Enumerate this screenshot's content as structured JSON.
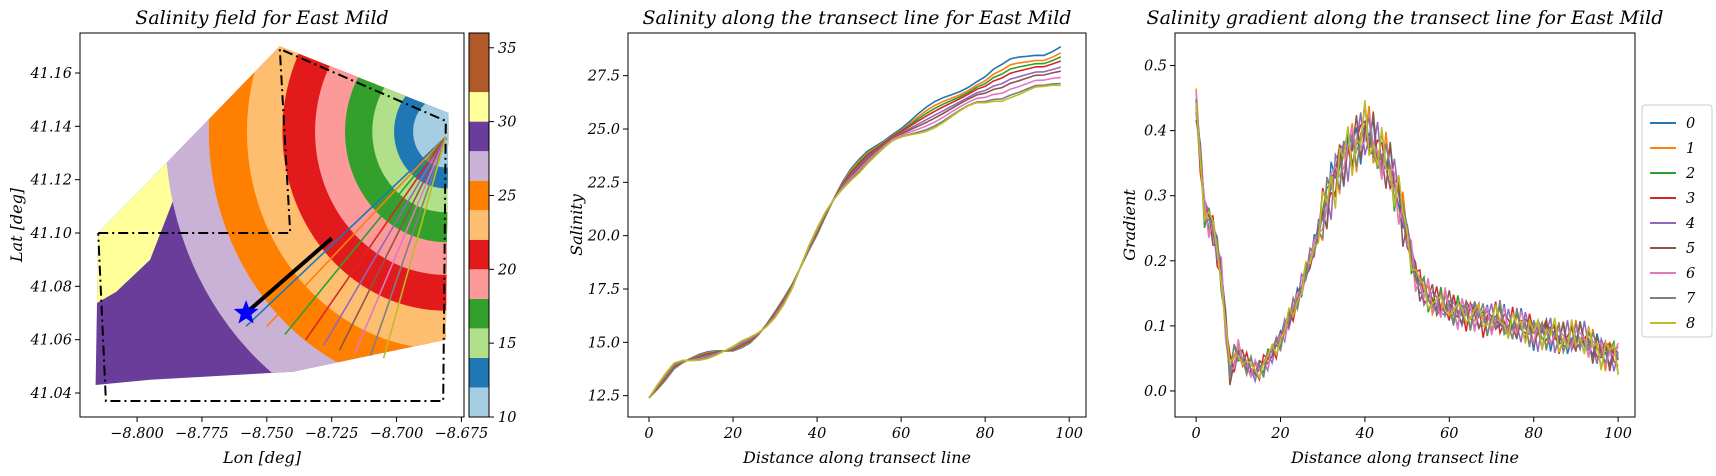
{
  "chart_data": [
    {
      "type": "heatmap",
      "title": "Salinity field for East Mild",
      "xlabel": "Lon [deg]",
      "ylabel": "Lat [deg]",
      "xlim": [
        -8.822,
        -8.674
      ],
      "ylim": [
        41.031,
        41.175
      ],
      "x_ticks": [
        -8.8,
        -8.775,
        -8.75,
        -8.725,
        -8.7,
        -8.675
      ],
      "x_tick_labels": [
        "−8.800",
        "−8.775",
        "−8.750",
        "−8.725",
        "−8.700",
        "−8.675"
      ],
      "y_ticks": [
        41.04,
        41.06,
        41.08,
        41.1,
        41.12,
        41.14,
        41.16
      ],
      "y_tick_labels": [
        "41.04",
        "41.06",
        "41.08",
        "41.10",
        "41.12",
        "41.14",
        "41.16"
      ],
      "colorbar": {
        "range": [
          10,
          36
        ],
        "ticks": [
          10,
          15,
          20,
          25,
          30,
          35
        ],
        "levels": [
          10,
          12,
          14,
          16,
          18,
          20,
          22,
          24,
          26,
          28,
          30,
          32,
          34,
          36
        ],
        "colors": [
          "#a6cee3",
          "#1f78b4",
          "#b2df8a",
          "#33a02c",
          "#fb9a99",
          "#e31a1c",
          "#fdbf6f",
          "#ff7f00",
          "#cab2d6",
          "#6a3d9a",
          "#ffff99",
          "#b15928",
          "#b15928"
        ]
      },
      "center_point": {
        "lon": -8.742,
        "lat": 41.131
      },
      "contour_radii_deg": [
        0.012,
        0.019,
        0.027,
        0.037,
        0.048,
        0.06,
        0.073,
        0.087,
        0.103
      ],
      "star": {
        "lon": -8.758,
        "lat": 41.07,
        "color": "#0000ff"
      },
      "transect_line": {
        "start": {
          "lon": -8.758,
          "lat": 41.07
        },
        "end": {
          "lon": -8.725,
          "lat": 41.098
        },
        "color": "#000000"
      },
      "fan_origin": {
        "lon": -8.681,
        "lat": 41.136
      },
      "fan_lines": [
        {
          "lon": -8.758,
          "lat": 41.065
        },
        {
          "lon": -8.75,
          "lat": 41.065
        },
        {
          "lon": -8.743,
          "lat": 41.062
        },
        {
          "lon": -8.735,
          "lat": 41.06
        },
        {
          "lon": -8.728,
          "lat": 41.058
        },
        {
          "lon": -8.722,
          "lat": 41.056
        },
        {
          "lon": -8.716,
          "lat": 41.055
        },
        {
          "lon": -8.71,
          "lat": 41.054
        },
        {
          "lon": -8.705,
          "lat": 41.053
        }
      ],
      "dashdot_boxes": [
        [
          [
            -8.815,
            41.1
          ],
          [
            -8.741,
            41.1
          ],
          [
            -8.745,
            41.169
          ],
          [
            -8.681,
            41.142
          ],
          [
            -8.682,
            41.037
          ],
          [
            -8.812,
            41.037
          ],
          [
            -8.815,
            41.1
          ]
        ]
      ],
      "domain_polygon": [
        [
          -8.816,
          41.043
        ],
        [
          -8.815,
          41.1
        ],
        [
          -8.745,
          41.17
        ],
        [
          -8.68,
          41.145
        ],
        [
          -8.681,
          41.06
        ],
        [
          -8.74,
          41.048
        ],
        [
          -8.795,
          41.045
        ]
      ]
    },
    {
      "type": "line",
      "title": "Salinity along the transect line for East Mild",
      "xlabel": "Distance along transect line",
      "ylabel": "Salinity",
      "xlim": [
        -5,
        104
      ],
      "ylim": [
        11.5,
        29.5
      ],
      "x_ticks": [
        0,
        20,
        40,
        60,
        80,
        100
      ],
      "x_tick_labels": [
        "0",
        "20",
        "40",
        "60",
        "80",
        "100"
      ],
      "y_ticks": [
        12.5,
        15.0,
        17.5,
        20.0,
        22.5,
        25.0,
        27.5
      ],
      "y_tick_labels": [
        "12.5",
        "15.0",
        "17.5",
        "20.0",
        "22.5",
        "25.0",
        "27.5"
      ],
      "x": [
        0,
        2,
        4,
        6,
        8,
        10,
        12,
        14,
        16,
        18,
        20,
        22,
        24,
        26,
        28,
        30,
        32,
        34,
        36,
        38,
        40,
        42,
        44,
        46,
        48,
        50,
        52,
        54,
        56,
        58,
        60,
        62,
        64,
        66,
        68,
        70,
        72,
        74,
        76,
        78,
        80,
        82,
        84,
        86,
        88,
        90,
        92,
        94,
        96,
        98
      ],
      "base_curve": [
        12.4,
        12.9,
        13.4,
        13.9,
        14.1,
        14.2,
        14.3,
        14.4,
        14.5,
        14.6,
        14.7,
        14.9,
        15.1,
        15.4,
        15.8,
        16.3,
        16.9,
        17.6,
        18.5,
        19.4,
        20.2,
        21.0,
        21.7,
        22.3,
        22.8,
        23.2,
        23.6,
        23.9,
        24.2,
        24.5,
        24.7,
        24.9,
        25.1,
        25.3,
        25.5,
        25.7,
        25.9,
        26.1,
        26.3,
        26.5,
        26.6,
        26.8,
        26.9,
        27.1,
        27.2,
        27.3,
        27.4,
        27.4,
        27.5,
        27.6
      ],
      "series": [
        {
          "name": "0",
          "end_offset": 1.3
        },
        {
          "name": "1",
          "end_offset": 1.0
        },
        {
          "name": "2",
          "end_offset": 0.8
        },
        {
          "name": "3",
          "end_offset": 0.6
        },
        {
          "name": "4",
          "end_offset": 0.3
        },
        {
          "name": "5",
          "end_offset": 0.1
        },
        {
          "name": "6",
          "end_offset": -0.2
        },
        {
          "name": "7",
          "end_offset": -0.5
        },
        {
          "name": "8",
          "end_offset": -0.6
        }
      ]
    },
    {
      "type": "line",
      "title": "Salinity gradient along the transect line for East Mild",
      "xlabel": "Distance along transect line",
      "ylabel": "Gradient",
      "xlim": [
        -5,
        104
      ],
      "ylim": [
        -0.04,
        0.55
      ],
      "x_ticks": [
        0,
        20,
        40,
        60,
        80,
        100
      ],
      "x_tick_labels": [
        "0",
        "20",
        "40",
        "60",
        "80",
        "100"
      ],
      "y_ticks": [
        0.0,
        0.1,
        0.2,
        0.3,
        0.4,
        0.5
      ],
      "y_tick_labels": [
        "0.0",
        "0.1",
        "0.2",
        "0.3",
        "0.4",
        "0.5"
      ],
      "x": [
        0,
        2,
        4,
        6,
        8,
        10,
        12,
        14,
        16,
        18,
        20,
        22,
        24,
        26,
        28,
        30,
        32,
        34,
        36,
        38,
        40,
        42,
        44,
        46,
        48,
        50,
        52,
        54,
        56,
        58,
        60,
        62,
        64,
        66,
        68,
        70,
        72,
        74,
        76,
        78,
        80,
        82,
        84,
        86,
        88,
        90,
        92,
        94,
        96,
        98,
        100
      ],
      "base_curve": [
        0.44,
        0.28,
        0.25,
        0.18,
        0.03,
        0.06,
        0.04,
        0.03,
        0.04,
        0.06,
        0.08,
        0.11,
        0.14,
        0.18,
        0.22,
        0.27,
        0.31,
        0.35,
        0.37,
        0.38,
        0.4,
        0.38,
        0.36,
        0.34,
        0.3,
        0.24,
        0.18,
        0.15,
        0.14,
        0.13,
        0.13,
        0.12,
        0.12,
        0.12,
        0.11,
        0.11,
        0.11,
        0.1,
        0.1,
        0.1,
        0.09,
        0.09,
        0.09,
        0.08,
        0.08,
        0.08,
        0.08,
        0.07,
        0.06,
        0.06,
        0.05
      ],
      "legend": {
        "placement": "right-outside"
      },
      "series": [
        {
          "name": "0"
        },
        {
          "name": "1"
        },
        {
          "name": "2"
        },
        {
          "name": "3"
        },
        {
          "name": "4"
        },
        {
          "name": "5"
        },
        {
          "name": "6"
        },
        {
          "name": "7"
        },
        {
          "name": "8"
        }
      ]
    }
  ],
  "series_colors": [
    "#1f77b4",
    "#ff7f0e",
    "#2ca02c",
    "#d62728",
    "#9467bd",
    "#8c564b",
    "#e377c2",
    "#7f7f7f",
    "#bcbd22"
  ]
}
